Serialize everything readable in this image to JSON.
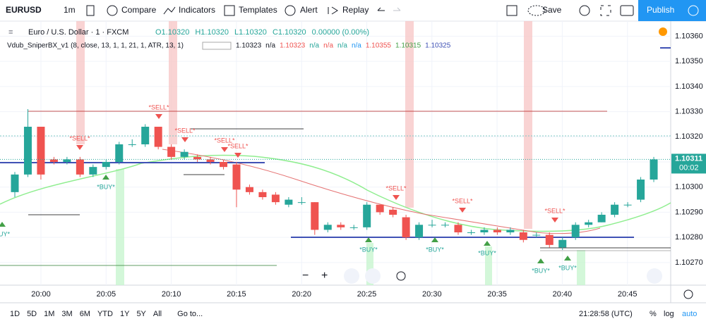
{
  "toolbar": {
    "symbol": "EURUSD",
    "interval": "1m",
    "compare": "Compare",
    "indicators": "Indicators",
    "templates": "Templates",
    "alert": "Alert",
    "replay": "Replay",
    "save": "Save",
    "publish": "Publish"
  },
  "legend": {
    "main": "Euro / U.S. Dollar · 1 · FXCM",
    "ohlc": [
      "O1.10320",
      "H1.10320",
      "L1.10320",
      "C1.10320",
      "0.00000 (0.00%)"
    ],
    "indicator": "Vdub_SniperBX_v1 (8, close, 13, 1, 1, 21, 1, ATR, 13, 1)",
    "indicator_values": [
      "1.10323",
      "n/a",
      "1.10323",
      "n/a",
      "n/a",
      "n/a",
      "n/a",
      "1.10355",
      "1.10315",
      "1.10325"
    ]
  },
  "chart": {
    "type": "candlestick",
    "ylim": [
      1.10261,
      1.10366
    ],
    "yticks": [
      {
        "value": 1.1036,
        "label": "1.10360"
      },
      {
        "value": 1.1035,
        "label": "1.10350"
      },
      {
        "value": 1.1034,
        "label": "1.10340"
      },
      {
        "value": 1.1033,
        "label": "1.10330"
      },
      {
        "value": 1.1032,
        "label": "1.10320"
      },
      {
        "value": 1.1031,
        "label": "1.10310"
      },
      {
        "value": 1.103,
        "label": "1.10300"
      },
      {
        "value": 1.1029,
        "label": "1.10290"
      },
      {
        "value": 1.1028,
        "label": "1.10280"
      },
      {
        "value": 1.1027,
        "label": "1.10270"
      }
    ],
    "xticks": [
      "20:00",
      "20:05",
      "20:10",
      "20:15",
      "20:20",
      "20:25",
      "20:30",
      "20:35",
      "20:40",
      "20:45"
    ],
    "up_color": "#26a69a",
    "down_color": "#ef5350",
    "opens": [
      1.10298,
      1.10305,
      1.10324,
      1.10311,
      1.1031,
      1.10311,
      1.10305,
      1.10308,
      1.1031,
      1.10317,
      1.10317,
      1.10324,
      1.10316,
      1.10312,
      1.10312,
      1.10311,
      1.1031,
      1.10309,
      1.103,
      1.10298,
      1.10297,
      1.10293,
      1.10294,
      1.10294,
      1.10283,
      1.10285,
      1.10284,
      1.10284,
      1.10293,
      1.10291,
      1.10288,
      1.1028,
      1.10285,
      1.10285,
      1.10285,
      1.10282,
      1.10282,
      1.10283,
      1.10282,
      1.10282,
      1.10281,
      1.10281,
      1.10276,
      1.1028,
      1.10285,
      1.10286,
      1.10289,
      1.10293,
      1.10295,
      1.10303
    ],
    "highs": [
      1.10306,
      1.10331,
      1.10324,
      1.10312,
      1.10312,
      1.10312,
      1.10309,
      1.10311,
      1.10318,
      1.10319,
      1.10325,
      1.10324,
      1.10317,
      1.10315,
      1.10313,
      1.10312,
      1.10311,
      1.1031,
      1.10301,
      1.10299,
      1.10298,
      1.10296,
      1.10296,
      1.10294,
      1.10286,
      1.10286,
      1.10285,
      1.10294,
      1.10293,
      1.10292,
      1.10289,
      1.10286,
      1.10287,
      1.10286,
      1.10286,
      1.10283,
      1.10284,
      1.10284,
      1.10284,
      1.10283,
      1.10282,
      1.10282,
      1.1028,
      1.10286,
      1.10287,
      1.1029,
      1.10294,
      1.10294,
      1.10304,
      1.10312
    ],
    "lows": [
      1.10296,
      1.10304,
      1.10303,
      1.10309,
      1.10309,
      1.10304,
      1.10304,
      1.10307,
      1.10309,
      1.10316,
      1.10316,
      1.10315,
      1.10311,
      1.10311,
      1.1031,
      1.10309,
      1.10307,
      1.10292,
      1.10297,
      1.10295,
      1.10293,
      1.10292,
      1.10293,
      1.10281,
      1.10282,
      1.10283,
      1.10283,
      1.10283,
      1.10289,
      1.10288,
      1.10279,
      1.10279,
      1.10284,
      1.10284,
      1.10281,
      1.10281,
      1.10281,
      1.10281,
      1.10281,
      1.10278,
      1.1028,
      1.10276,
      1.10275,
      1.10279,
      1.10284,
      1.10286,
      1.10288,
      1.10292,
      1.10294,
      1.10302
    ],
    "closes": [
      1.10305,
      1.10324,
      1.10305,
      1.1031,
      1.10311,
      1.10305,
      1.10308,
      1.1031,
      1.10317,
      1.10317,
      1.10324,
      1.10316,
      1.10312,
      1.10314,
      1.10311,
      1.1031,
      1.10308,
      1.10299,
      1.10298,
      1.10296,
      1.10294,
      1.10295,
      1.10294,
      1.10283,
      1.10285,
      1.10284,
      1.10284,
      1.10293,
      1.1029,
      1.10289,
      1.1028,
      1.10285,
      1.10285,
      1.10285,
      1.10282,
      1.10282,
      1.10283,
      1.10282,
      1.10283,
      1.10279,
      1.10281,
      1.10277,
      1.10279,
      1.10285,
      1.10286,
      1.10289,
      1.10293,
      1.10293,
      1.10303,
      1.10311
    ],
    "signals": [
      "*SELL*",
      "*SELL*",
      "*SELL*",
      "*SELL*",
      "*SELL*",
      "*SELL*",
      "*SELL*",
      "*SELL*",
      "*BUY*",
      "*BUY*",
      "*BUY*",
      "*BUY*",
      "*BUY*",
      "*BUY*",
      "BUY*"
    ],
    "last_price": {
      "value": 1.10311,
      "label": "1.10311"
    },
    "countdown": "00:02"
  },
  "bottom": {
    "ranges": [
      "1D",
      "5D",
      "1M",
      "3M",
      "6M",
      "YTD",
      "1Y",
      "5Y",
      "All"
    ],
    "goto": "Go to...",
    "clock": "21:28:58 (UTC)",
    "percent": "%",
    "log": "log",
    "auto": "auto"
  }
}
